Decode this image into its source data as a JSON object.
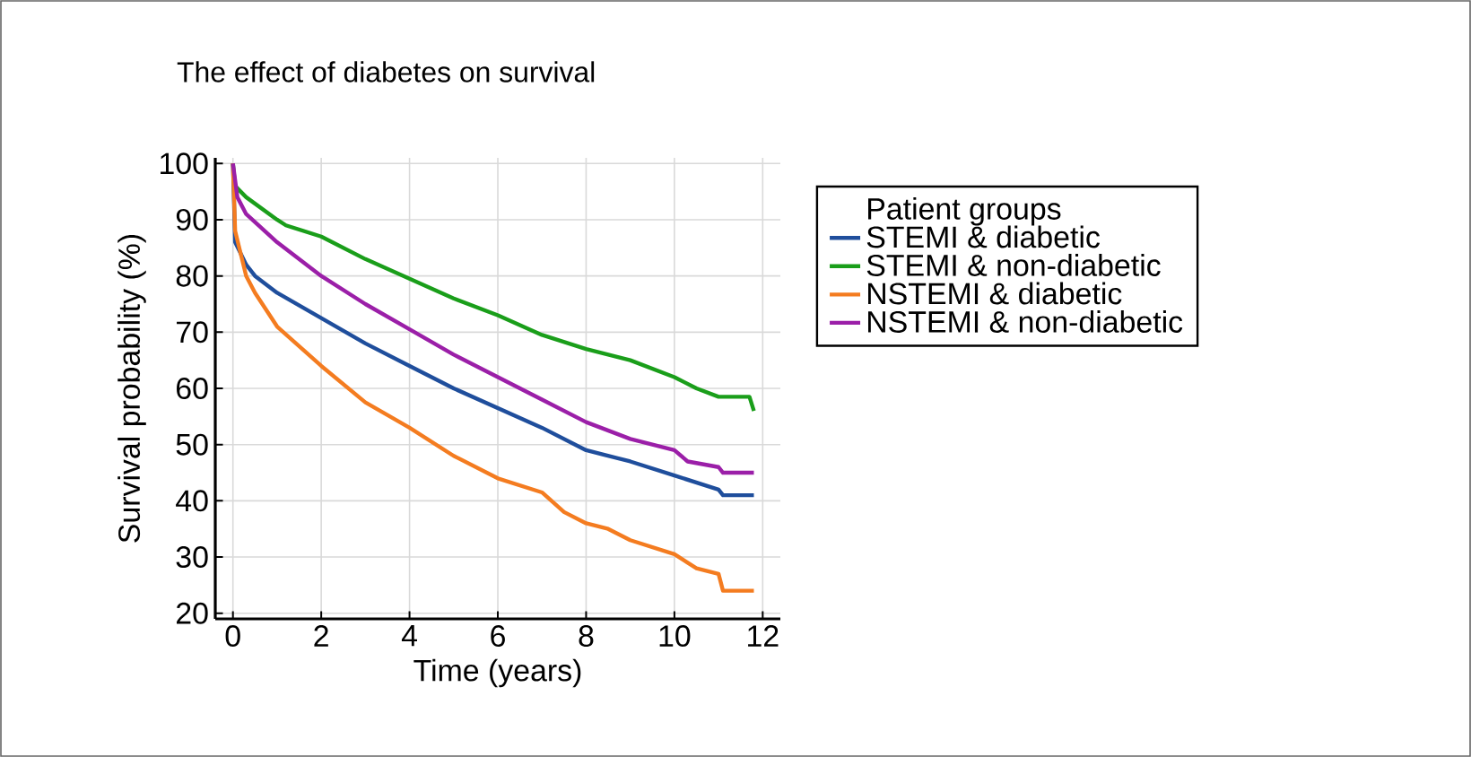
{
  "chart_data": {
    "type": "line",
    "title": "The effect of diabetes on survival",
    "xlabel": "Time (years)",
    "ylabel": "Survival probability (%)",
    "legend_title": "Patient groups",
    "xlim": [
      -0.4,
      12.4
    ],
    "ylim": [
      19,
      101
    ],
    "xticks": [
      0,
      2,
      4,
      6,
      8,
      10,
      12
    ],
    "yticks": [
      20,
      30,
      40,
      50,
      60,
      70,
      80,
      90,
      100
    ],
    "grid": true,
    "legend": "right",
    "series": [
      {
        "name": "STEMI & diabetic",
        "color": "#1f4e9c",
        "x": [
          0,
          0.05,
          0.3,
          0.5,
          1,
          2,
          3,
          4,
          5,
          6,
          7,
          8,
          9,
          10,
          11,
          11.1,
          11.8
        ],
        "values": [
          100,
          86,
          82,
          80,
          77,
          72.5,
          68,
          64,
          60,
          56.5,
          53,
          49,
          47,
          44.5,
          42,
          41,
          41
        ]
      },
      {
        "name": "STEMI & non-diabetic",
        "color": "#1a9e1a",
        "x": [
          0,
          0.05,
          0.3,
          1,
          1.2,
          2,
          3,
          4,
          5,
          6,
          7,
          8,
          9,
          10,
          10.5,
          11,
          11.7,
          11.8
        ],
        "values": [
          100,
          96,
          94,
          90,
          89,
          87,
          83,
          79.5,
          76,
          73,
          69.5,
          67,
          65,
          62,
          60,
          58.5,
          58.5,
          56
        ]
      },
      {
        "name": "NSTEMI & diabetic",
        "color": "#f47c20",
        "x": [
          0,
          0.05,
          0.3,
          0.5,
          1,
          2,
          3,
          4,
          5,
          6,
          7,
          7.5,
          8,
          8.5,
          9,
          10,
          10.3,
          10.5,
          11,
          11.1,
          11.8
        ],
        "values": [
          100,
          88,
          80,
          77,
          71,
          64,
          57.5,
          53,
          48,
          44,
          41.5,
          38,
          36,
          35,
          33,
          30.5,
          29,
          28,
          27,
          24,
          24
        ]
      },
      {
        "name": "NSTEMI & non-diabetic",
        "color": "#9b1fa8",
        "x": [
          0,
          0.1,
          0.3,
          1,
          2,
          3,
          4,
          5,
          6,
          7,
          8,
          9,
          9.5,
          10,
          10.3,
          11,
          11.1,
          11.8
        ],
        "values": [
          100,
          94,
          91,
          86,
          80,
          75,
          70.5,
          66,
          62,
          58,
          54,
          51,
          50,
          49,
          47,
          46,
          45,
          45
        ]
      }
    ]
  }
}
